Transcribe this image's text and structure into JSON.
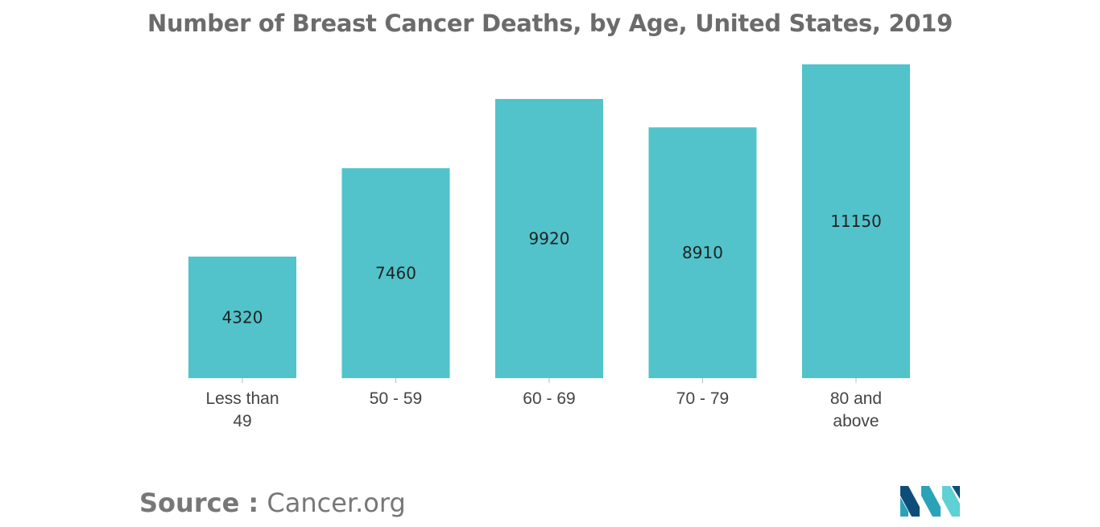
{
  "chart_data": {
    "type": "bar",
    "title": "Number of Breast Cancer Deaths, by Age, United States, 2019",
    "categories": [
      [
        "Less than",
        "49"
      ],
      [
        "50 - 59"
      ],
      [
        "60 - 69"
      ],
      [
        "70 - 79"
      ],
      [
        "80 and",
        "above"
      ]
    ],
    "values": [
      4320,
      7460,
      9920,
      8910,
      11150
    ],
    "xlabel": "",
    "ylabel": "",
    "ylim": [
      0,
      11150
    ],
    "grid": false,
    "legend": "none",
    "bar_color": "#52c3ca"
  },
  "source": {
    "label": "Source :",
    "text": "Cancer.org"
  },
  "logo": {
    "icon": "mordor-intelligence-logo-icon",
    "colors": [
      "#0e4d7a",
      "#2aa3b8",
      "#5fd0d4"
    ]
  }
}
